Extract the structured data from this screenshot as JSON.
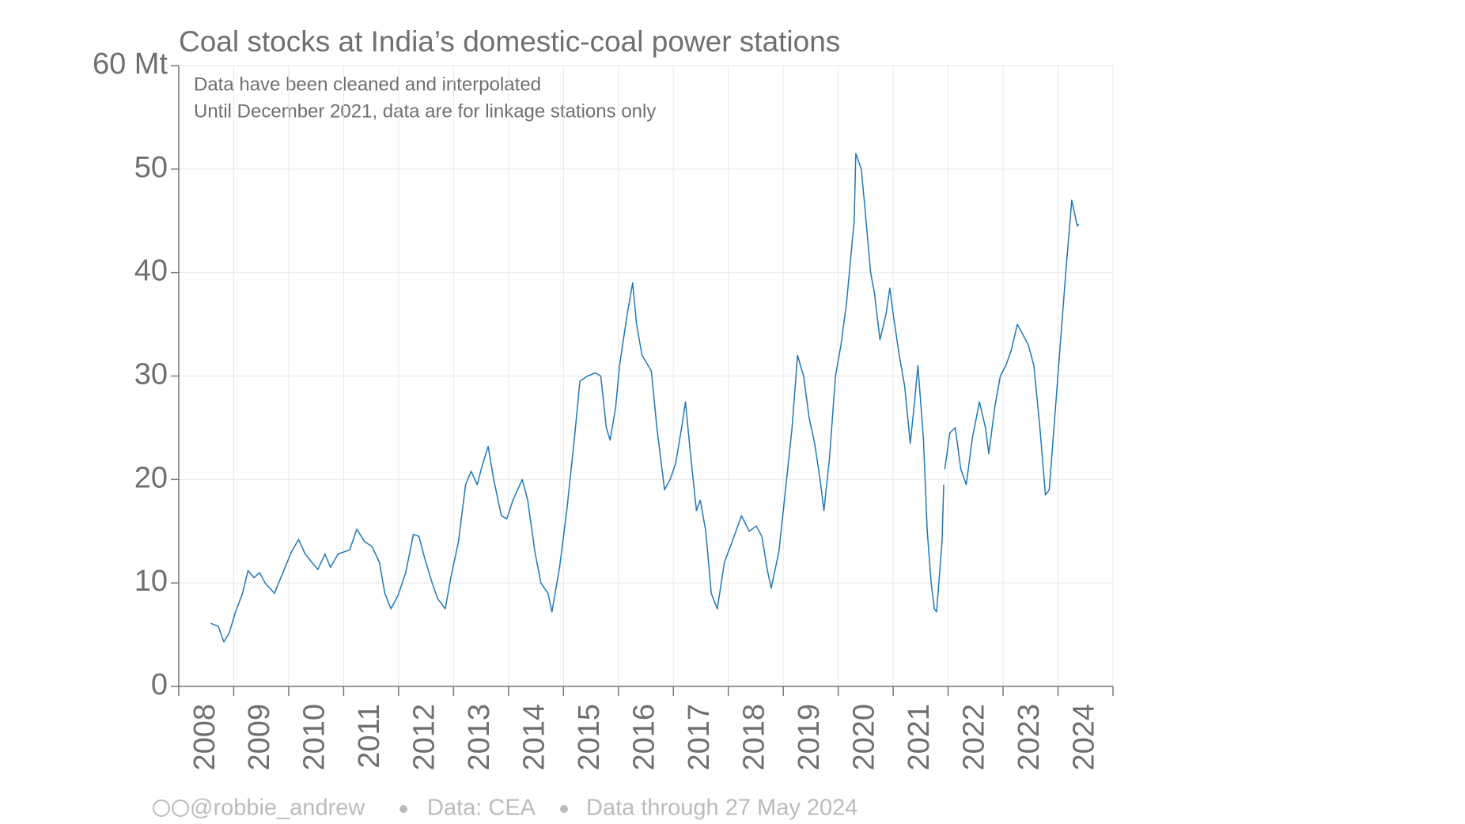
{
  "chart_data": {
    "type": "line",
    "title": "Coal stocks at India’s domestic-coal power stations",
    "notes": [
      "Data have been cleaned and interpolated",
      "Until December 2021, data are for linkage stations only"
    ],
    "footer": [
      "@robbie_andrew",
      "Data: CEA",
      "Data through 27 May 2024"
    ],
    "xlim": [
      2008,
      2025
    ],
    "xticks": [
      2008,
      2009,
      2010,
      2011,
      2012,
      2013,
      2014,
      2015,
      2016,
      2017,
      2018,
      2019,
      2020,
      2021,
      2022,
      2023,
      2024
    ],
    "ylim": [
      0,
      60
    ],
    "yticks": [
      0,
      10,
      20,
      30,
      40,
      50,
      {
        "value": 60,
        "label": "60 Mt"
      }
    ],
    "grid": true,
    "series": [
      {
        "name": "Coal stocks",
        "color": "#1f78b8",
        "x": [
          2008.58,
          2008.72,
          2008.82,
          2008.92,
          2009.02,
          2009.16,
          2009.26,
          2009.37,
          2009.47,
          2009.57,
          2009.74,
          2009.88,
          2010.05,
          2010.18,
          2010.3,
          2010.42,
          2010.53,
          2010.66,
          2010.76,
          2010.9,
          2011.11,
          2011.24,
          2011.38,
          2011.52,
          2011.65,
          2011.75,
          2011.86,
          2011.99,
          2012.13,
          2012.27,
          2012.37,
          2012.47,
          2012.61,
          2012.71,
          2012.85,
          2012.95,
          2013.09,
          2013.22,
          2013.32,
          2013.43,
          2013.53,
          2013.63,
          2013.73,
          2013.87,
          2013.97,
          2014.08,
          2014.25,
          2014.35,
          2014.48,
          2014.59,
          2014.72,
          2014.79,
          2014.93,
          2015.06,
          2015.2,
          2015.3,
          2015.44,
          2015.58,
          2015.68,
          2015.78,
          2015.85,
          2015.95,
          2016.02,
          2016.16,
          2016.26,
          2016.33,
          2016.43,
          2016.6,
          2016.7,
          2016.84,
          2016.94,
          2017.04,
          2017.15,
          2017.22,
          2017.32,
          2017.42,
          2017.49,
          2017.59,
          2017.69,
          2017.8,
          2017.93,
          2018.07,
          2018.24,
          2018.38,
          2018.51,
          2018.61,
          2018.72,
          2018.78,
          2018.92,
          2019.02,
          2019.16,
          2019.26,
          2019.37,
          2019.47,
          2019.57,
          2019.67,
          2019.74,
          2019.84,
          2019.95,
          2020.05,
          2020.15,
          2020.29,
          2020.32,
          2020.42,
          2020.49,
          2020.59,
          2020.66,
          2020.76,
          2020.87,
          2020.94,
          2021.0,
          2021.11,
          2021.21,
          2021.31,
          2021.38,
          2021.45,
          2021.55,
          2021.62,
          2021.69,
          2021.75,
          2021.79,
          2021.89,
          2021.92,
          2021.93,
          2021.94,
          2022.03,
          2022.13,
          2022.23,
          2022.33,
          2022.44,
          2022.57,
          2022.68,
          2022.74,
          2022.85,
          2022.95,
          2023.05,
          2023.15,
          2023.26,
          2023.36,
          2023.46,
          2023.56,
          2023.67,
          2023.77,
          2023.84,
          2023.94,
          2024.04,
          2024.14,
          2024.25,
          2024.35,
          2024.38
        ],
        "values": [
          6.1,
          5.8,
          4.3,
          5.2,
          7.0,
          9,
          11.2,
          10.5,
          11,
          10,
          9,
          10.8,
          13,
          14.2,
          12.8,
          12,
          11.3,
          12.8,
          11.5,
          12.8,
          13.2,
          15.2,
          14,
          13.5,
          12,
          9,
          7.5,
          8.8,
          11,
          14.7,
          14.5,
          12.5,
          10,
          8.5,
          7.5,
          10.5,
          14,
          19.5,
          20.8,
          19.5,
          21.5,
          23.2,
          20,
          16.5,
          16.2,
          18,
          20,
          18,
          13,
          10,
          9,
          7.2,
          11.5,
          17,
          24,
          29.5,
          30,
          30.3,
          30,
          25,
          23.8,
          27,
          31,
          36,
          39,
          35,
          32,
          30.5,
          25,
          19,
          20,
          21.5,
          25,
          27.5,
          22,
          17,
          18,
          15,
          9,
          7.5,
          12,
          14,
          16.5,
          15,
          15.5,
          14.5,
          11,
          9.5,
          13,
          18,
          25,
          32,
          30,
          26,
          23.5,
          20,
          17,
          22,
          30,
          33,
          37,
          45,
          51.5,
          50,
          46,
          40,
          38,
          33.5,
          36,
          38.5,
          36,
          32,
          29,
          23.5,
          27,
          31,
          24,
          15,
          10,
          7.5,
          7.2,
          14,
          19.5,
          null,
          21,
          24.5,
          25,
          21,
          19.5,
          24,
          27.5,
          25,
          22.5,
          27,
          30,
          31,
          32.5,
          35,
          34,
          33,
          31,
          25,
          18.5,
          19,
          26,
          33,
          40,
          47,
          44.5,
          44.7
        ]
      }
    ]
  }
}
